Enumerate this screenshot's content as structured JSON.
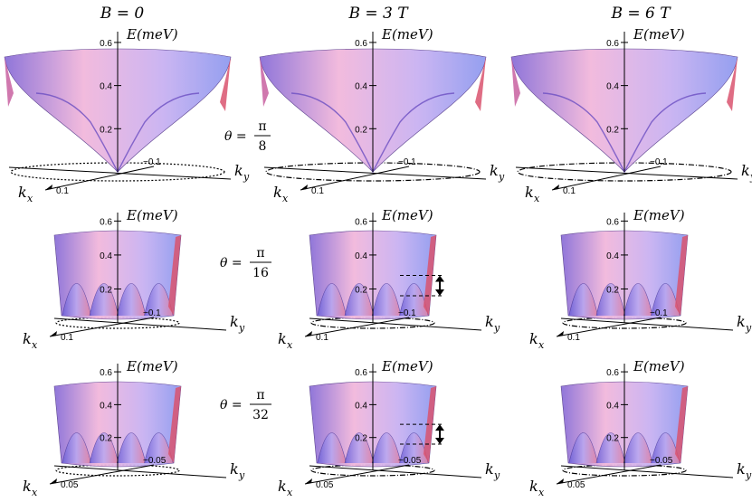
{
  "columns": [
    {
      "label": "B = 0"
    },
    {
      "label": "B = 3 T"
    },
    {
      "label": "B = 6 T"
    }
  ],
  "rows": [
    {
      "theta_prefix": "θ =",
      "theta_num": "π",
      "theta_den": "8",
      "ktick": "0.1",
      "ktick_neg": "−0.1",
      "variant": "wide"
    },
    {
      "theta_prefix": "θ =",
      "theta_num": "π",
      "theta_den": "16",
      "ktick": "0.1",
      "ktick_neg": "−0.1",
      "variant": "cyl"
    },
    {
      "theta_prefix": "θ =",
      "theta_num": "π",
      "theta_den": "32",
      "ktick": "0.05",
      "ktick_neg": "−0.05",
      "variant": "cyl"
    }
  ],
  "axis": {
    "energy_label": "E(meV)",
    "ticks": [
      "0.2",
      "0.4",
      "0.6"
    ],
    "kx_label": "k",
    "kx_sub": "x",
    "ky_label": "k",
    "ky_sub": "y"
  },
  "gap_arrow_panels": [
    "r1c1",
    "r2c1"
  ],
  "colors": {
    "surface_pink": "#f2b8dc",
    "surface_blue": "#8f9bf0",
    "surface_purple": "#8a6fd8",
    "edge_red": "#d9546e",
    "outline": "#111111"
  }
}
